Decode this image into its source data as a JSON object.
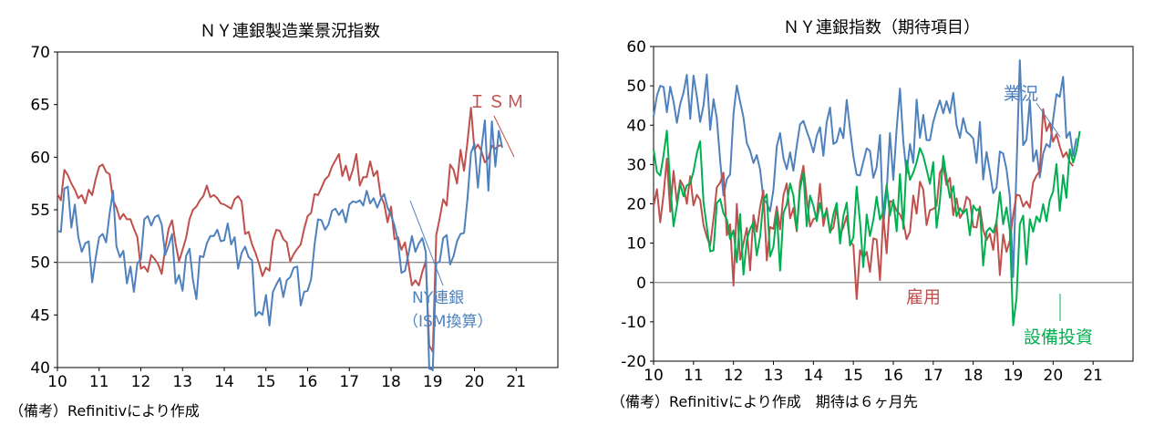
{
  "chart_data": [
    {
      "type": "line",
      "title": "ＮＹ連銀製造業景況指数",
      "note": "（備考）Refinitivにより作成",
      "ylim": [
        40,
        70
      ],
      "yticks": [
        40,
        45,
        50,
        55,
        60,
        65,
        70
      ],
      "xlim": [
        10,
        22
      ],
      "xticks": [
        "10",
        "11",
        "12",
        "13",
        "14",
        "15",
        "16",
        "17",
        "18",
        "19",
        "20",
        "21"
      ],
      "reference_line": 50,
      "grid": false,
      "series": [
        {
          "name": "ＩＳＭ",
          "color": "#c0504d",
          "x_start": 10.0,
          "values": [
            56.5,
            55.9,
            58.8,
            58.3,
            57.5,
            56.9,
            56.1,
            56.4,
            55.6,
            56.9,
            56.4,
            57.9,
            59.1,
            59.3,
            58.6,
            58.4,
            55.9,
            55.2,
            54.1,
            54.6,
            54.1,
            54.1,
            53.2,
            52.4,
            49.4,
            49.6,
            49.1,
            50.7,
            50.3,
            49.8,
            48.9,
            51.3,
            53.2,
            54.0,
            51.8,
            50.1,
            51.2,
            52.3,
            54.1,
            55.0,
            55.3,
            55.9,
            56.3,
            57.3,
            56.2,
            56.4,
            56.1,
            55.6,
            55.5,
            55.3,
            55.1,
            56.0,
            56.3,
            55.8,
            52.7,
            52.9,
            51.7,
            50.9,
            49.9,
            48.7,
            49.5,
            49.2,
            52.1,
            53.1,
            53.0,
            52.2,
            51.9,
            50.1,
            50.8,
            51.3,
            51.7,
            53.2,
            54.4,
            54.7,
            56.5,
            56.4,
            57.1,
            57.9,
            58.2,
            59.1,
            59.7,
            60.3,
            58.2,
            59.2,
            57.8,
            58.8,
            60.3,
            57.3,
            58.1,
            58.1,
            59.6,
            58.2,
            58.7,
            56.3,
            55.6,
            53.8,
            55.3,
            52.2,
            52.4,
            51.2,
            51.9,
            49.9,
            47.8,
            48.3,
            47.8,
            49.1,
            50.1,
            42.1,
            41.5,
            52.6,
            54.2,
            56.0,
            55.4,
            59.3,
            58.8,
            57.5,
            60.7,
            58.7,
            61.5,
            64.7,
            60.7,
            61.2,
            60.6,
            59.5,
            59.9,
            61.1,
            60.8,
            61.1,
            61.1
          ]
        },
        {
          "name": "NY連銀（ISM換算）",
          "color": "#4f81bd",
          "x_start": 10.0,
          "values": [
            53.0,
            52.9,
            57.0,
            57.2,
            53.3,
            55.5,
            52.4,
            51.0,
            51.8,
            52.0,
            48.1,
            50.4,
            52.4,
            52.7,
            51.9,
            54.6,
            56.8,
            51.5,
            50.5,
            51.1,
            48.0,
            49.6,
            47.2,
            49.9,
            50.3,
            54.1,
            54.4,
            53.5,
            54.3,
            54.5,
            53.6,
            50.7,
            51.6,
            52.7,
            48.0,
            48.8,
            47.3,
            50.6,
            51.3,
            48.3,
            46.5,
            50.6,
            50.5,
            51.8,
            52.5,
            52.5,
            53.1,
            52.0,
            52.1,
            53.7,
            51.7,
            52.4,
            49.4,
            50.9,
            51.5,
            50.5,
            50.2,
            44.9,
            45.3,
            45.0,
            46.9,
            44.0,
            47.2,
            47.9,
            48.5,
            46.7,
            48.3,
            48.6,
            49.5,
            49.6,
            45.9,
            47.2,
            47.3,
            48.4,
            51.7,
            54.1,
            54.0,
            53.1,
            53.6,
            54.9,
            55.1,
            54.5,
            55.0,
            53.8,
            55.5,
            55.8,
            55.7,
            55.9,
            55.4,
            56.8,
            55.6,
            56.1,
            55.2,
            56.0,
            56.5,
            55.2,
            54.5,
            53.5,
            52.0,
            49.0,
            49.2,
            50.8,
            52.5,
            51.0,
            51.8,
            52.3,
            51.0,
            39.9,
            39.8,
            49.9,
            50.1,
            52.3,
            52.6,
            49.8,
            50.6,
            52.0,
            52.7,
            52.8,
            56.1,
            60.4,
            61.3,
            57.1,
            60.8,
            63.5,
            56.8,
            63.4,
            59.1,
            62.5,
            60.9
          ]
        }
      ],
      "annotations": [
        "ＩＳＭ",
        "NY連銀",
        "（ISM換算）"
      ]
    },
    {
      "type": "line",
      "title": "ＮＹ連銀指数（期待項目）",
      "note": "（備考）Refinitivにより作成　期待は６ヶ月先",
      "ylim": [
        -20,
        60
      ],
      "yticks": [
        -20,
        -10,
        0,
        10,
        20,
        30,
        40,
        50,
        60
      ],
      "xlim": [
        10,
        22
      ],
      "xticks": [
        "10",
        "11",
        "12",
        "13",
        "14",
        "15",
        "16",
        "17",
        "18",
        "19",
        "20",
        "21"
      ],
      "reference_line": 0,
      "grid": false,
      "series": [
        {
          "name": "業況",
          "color": "#4f81bd",
          "x_start": 10.0,
          "values": [
            42.2,
            47.5,
            50.0,
            49.7,
            43.3,
            49.8,
            46.0,
            40.6,
            45.4,
            48.3,
            52.8,
            41.6,
            52.6,
            47.3,
            40.8,
            45.0,
            52.9,
            38.8,
            46.6,
            41.7,
            30.9,
            22.1,
            26.3,
            27.5,
            42.9,
            50.1,
            45.9,
            42.0,
            35.5,
            33.5,
            30.4,
            32.4,
            28.7,
            21.2,
            20.2,
            18.1,
            23.6,
            34.7,
            38.0,
            31.6,
            28.8,
            33.1,
            28.4,
            34.8,
            40.2,
            41.1,
            38.5,
            36.1,
            33.1,
            37.3,
            39.5,
            32.2,
            40.7,
            44.5,
            35.2,
            35.8,
            39.3,
            36.7,
            46.4,
            39.0,
            32.1,
            27.4,
            27.2,
            30.7,
            34.1,
            33.5,
            26.6,
            29.3,
            37.5,
            14.4,
            23.1,
            38.0,
            26.1,
            39.1,
            49.3,
            35.8,
            27.7,
            35.2,
            30.4,
            46.5,
            36.8,
            42.6,
            36.2,
            36.2,
            40.8,
            43.8,
            46.3,
            43.0,
            46.1,
            43.1,
            48.2,
            40.0,
            36.8,
            41.8,
            38.3,
            37.6,
            36.6,
            30.4,
            40.8,
            26.2,
            33.2,
            28.3,
            22.7,
            24.1,
            33.3,
            32.8,
            28.8,
            21.9,
            1.4,
            29.3,
            56.5,
            34.9,
            36.3,
            46.4,
            30.8,
            33.6,
            26.7,
            32.8,
            35.2,
            34.4,
            41.4,
            47.9,
            47.2,
            52.3,
            36.8,
            38.3,
            32.2,
            36.7
          ]
        },
        {
          "name": "雇用",
          "color": "#c0504d",
          "x_start": 10.0,
          "values": [
            19.4,
            23.7,
            15.3,
            22.4,
            31.5,
            18.0,
            28.4,
            20.3,
            26.0,
            24.5,
            20.0,
            27.0,
            19.6,
            22.3,
            21.0,
            14.6,
            11.6,
            9.4,
            16.3,
            24.2,
            25.4,
            27.9,
            12.0,
            14.8,
            -0.8,
            20.0,
            5.8,
            9.9,
            13.9,
            3.1,
            17.2,
            12.9,
            19.2,
            23.4,
            5.6,
            14.1,
            13.6,
            19.3,
            13.5,
            22.2,
            25.2,
            16.3,
            18.9,
            13.0,
            25.5,
            29.7,
            21.5,
            14.2,
            16.1,
            16.5,
            25.1,
            14.4,
            18.9,
            12.9,
            14.0,
            19.0,
            12.1,
            14.0,
            16.9,
            10.4,
            9.5,
            -4.2,
            8.2,
            6.1,
            7.8,
            2.7,
            11.2,
            10.9,
            0.6,
            17.1,
            7.4,
            20.7,
            20.4,
            18.2,
            17.3,
            15.3,
            11.0,
            12.9,
            22.1,
            17.5,
            25.6,
            23.6,
            14.6,
            18.4,
            18.7,
            19.5,
            27.9,
            29.6,
            24.8,
            26.6,
            17.1,
            21.4,
            16.4,
            17.9,
            21.8,
            20.9,
            14.1,
            14.0,
            19.3,
            13.4,
            10.8,
            12.4,
            8.3,
            15.6,
            1.9,
            12.2,
            7.8,
            10.6,
            17.2,
            22.3,
            22.1,
            19.3,
            20.6,
            19.0,
            25.4,
            27.2,
            28.3,
            44.1,
            38.5,
            40.6,
            35.8,
            37.7,
            34.6,
            31.9,
            33.1,
            30.6,
            29.6
          ]
        },
        {
          "name": "設備投資",
          "color": "#00b050",
          "x_start": 10.0,
          "values": [
            33.8,
            28.1,
            27.2,
            32.4,
            38.6,
            24.5,
            14.3,
            19.5,
            25.0,
            21.9,
            24.7,
            25.2,
            28.2,
            32.9,
            35.9,
            20.4,
            14.2,
            7.9,
            8.2,
            20.2,
            21.2,
            17.6,
            16.0,
            11.0,
            13.3,
            5.1,
            17.4,
            2.0,
            10.8,
            13.6,
            15.3,
            6.9,
            11.7,
            20.9,
            22.4,
            6.6,
            9.1,
            17.9,
            3.0,
            17.7,
            19.8,
            25.2,
            22.1,
            13.4,
            23.8,
            27.9,
            14.3,
            22.1,
            19.5,
            15.6,
            20.2,
            16.5,
            18.3,
            12.6,
            17.4,
            20.2,
            9.9,
            16.9,
            20.3,
            9.4,
            11.5,
            24.4,
            15.4,
            3.9,
            17.3,
            11.8,
            15.9,
            21.8,
            16.0,
            18.1,
            24.8,
            17.0,
            21.0,
            13.0,
            27.6,
            13.7,
            31.0,
            26.1,
            27.9,
            30.6,
            34.2,
            32.1,
            28.8,
            25.1,
            30.6,
            13.9,
            20.6,
            32.2,
            26.6,
            21.6,
            24.5,
            16.8,
            18.9,
            17.6,
            18.7,
            12.0,
            19.6,
            18.3,
            18.9,
            4.3,
            13.0,
            13.9,
            12.7,
            15.4,
            23.0,
            14.8,
            19.1,
            13.3,
            -10.9,
            -4.0,
            14.8,
            17.0,
            4.6,
            16.1,
            12.9,
            16.8,
            15.4,
            19.9,
            15.6,
            21.0,
            23.1,
            30.1,
            18.2,
            27.3,
            21.5,
            33.9,
            30.5,
            33.5,
            38.5
          ]
        }
      ],
      "annotations": [
        "業況",
        "雇用",
        "設備投資"
      ]
    }
  ]
}
